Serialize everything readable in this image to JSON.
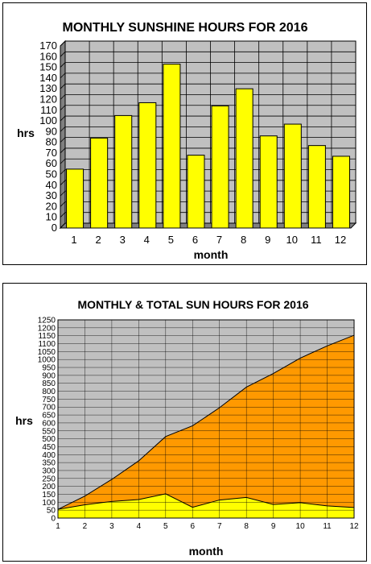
{
  "chart_data": [
    {
      "type": "bar",
      "title": "MONTHLY SUNSHINE HOURS FOR 2016",
      "xlabel": "month",
      "ylabel": "hrs",
      "categories": [
        "1",
        "2",
        "3",
        "4",
        "5",
        "6",
        "7",
        "8",
        "9",
        "10",
        "11",
        "12"
      ],
      "values": [
        55,
        84,
        105,
        117,
        153,
        68,
        114,
        130,
        86,
        97,
        77,
        67
      ],
      "ylim": [
        0,
        170
      ],
      "yticks": [
        0,
        10,
        20,
        30,
        40,
        50,
        60,
        70,
        80,
        90,
        100,
        110,
        120,
        130,
        140,
        150,
        160,
        170
      ],
      "grid": true,
      "colors": {
        "bar": "#ffff00",
        "plot_bg": "#c0c0c0",
        "grid": "#000000"
      }
    },
    {
      "type": "area",
      "title": "MONTHLY & TOTAL SUN HOURS FOR 2016",
      "xlabel": "month",
      "ylabel": "hrs",
      "x": [
        "1",
        "2",
        "3",
        "4",
        "5",
        "6",
        "7",
        "8",
        "9",
        "10",
        "11",
        "12"
      ],
      "series": [
        {
          "values": [
            55,
            139,
            244,
            361,
            514,
            582,
            696,
            826,
            912,
            1009,
            1086,
            1153
          ],
          "color": "#ff9900"
        },
        {
          "values": [
            55,
            84,
            105,
            117,
            153,
            68,
            114,
            130,
            86,
            97,
            77,
            67
          ],
          "color": "#ffff00"
        }
      ],
      "ylim": [
        0,
        1250
      ],
      "yticks": [
        0,
        50,
        100,
        150,
        200,
        250,
        300,
        350,
        400,
        450,
        500,
        550,
        600,
        650,
        700,
        750,
        800,
        850,
        900,
        950,
        1000,
        1050,
        1100,
        1150,
        1200,
        1250
      ],
      "grid": true,
      "colors": {
        "plot_bg": "#c0c0c0",
        "grid": "#000000"
      }
    }
  ]
}
